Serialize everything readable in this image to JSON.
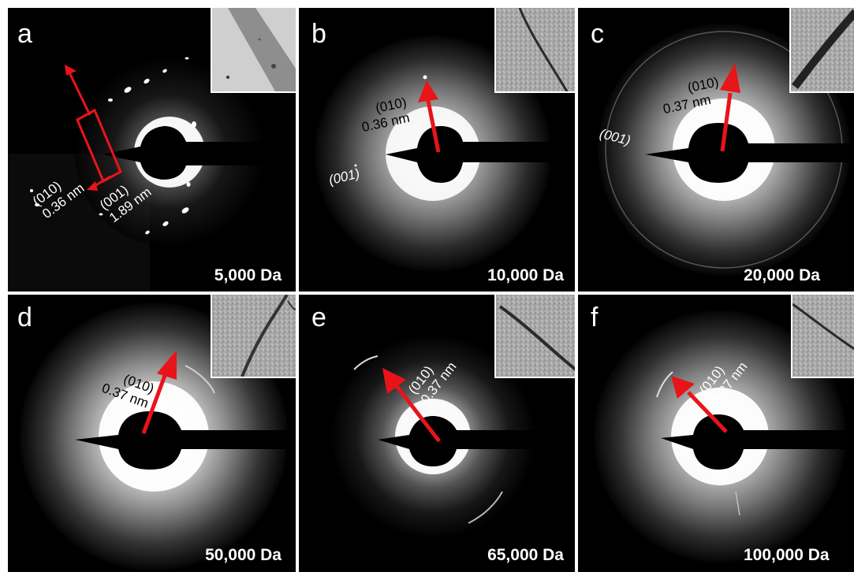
{
  "panels": {
    "a": {
      "letter": "a",
      "concentration": "5,000 Da",
      "plane1": "(010)",
      "dspacing1": "0.36 nm",
      "plane2": "(001)",
      "dspacing2": "1.89 nm"
    },
    "b": {
      "letter": "b",
      "concentration": "10,000 Da",
      "plane1": "(010)",
      "dspacing1": "0.36 nm",
      "plane2": "(001)"
    },
    "c": {
      "letter": "c",
      "concentration": "20,000 Da",
      "plane1": "(010)",
      "dspacing1": "0.37 nm",
      "plane2": "(001)"
    },
    "d": {
      "letter": "d",
      "concentration": "50,000 Da",
      "plane1": "(010)",
      "dspacing1": "0.37 nm"
    },
    "e": {
      "letter": "e",
      "concentration": "65,000 Da",
      "plane1": "(010)",
      "dspacing1": "0.37 nm"
    },
    "f": {
      "letter": "f",
      "concentration": "100,000 Da",
      "plane1": "(010)",
      "dspacing1": "0.37 nm"
    }
  },
  "colors": {
    "arrow": "#e8141a",
    "background": "#000000",
    "label": "#ffffff"
  }
}
